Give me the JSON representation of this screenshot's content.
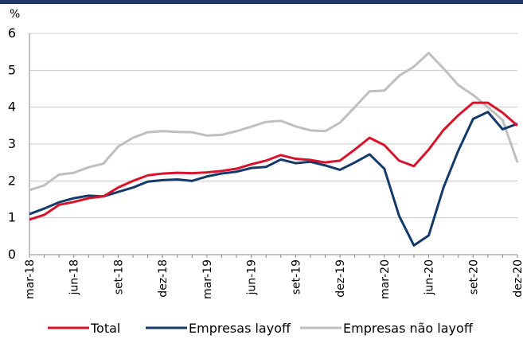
{
  "chart_data": {
    "type": "line",
    "y_label": "%",
    "categories": [
      "mar-18",
      null,
      null,
      "jun-18",
      null,
      null,
      "set-18",
      null,
      null,
      "dez-18",
      null,
      null,
      "mar-19",
      null,
      null,
      "jun-19",
      null,
      null,
      "set-19",
      null,
      null,
      "dez-19",
      null,
      null,
      "mar-20",
      null,
      null,
      "jun-20",
      null,
      null,
      "set-20",
      null,
      null,
      "dez-20"
    ],
    "series": [
      {
        "name": "Total",
        "color": "#d7142b",
        "values": [
          0.95,
          1.08,
          1.35,
          1.43,
          1.53,
          1.58,
          1.82,
          2.0,
          2.15,
          2.2,
          2.22,
          2.21,
          2.23,
          2.27,
          2.33,
          2.45,
          2.55,
          2.7,
          2.6,
          2.57,
          2.5,
          2.55,
          2.85,
          3.17,
          2.97,
          2.55,
          2.4,
          2.85,
          3.38,
          3.78,
          4.12,
          4.12,
          3.85,
          3.5
        ]
      },
      {
        "name": "Empresas layoff",
        "color": "#143a6b",
        "values": [
          1.1,
          1.25,
          1.42,
          1.53,
          1.6,
          1.58,
          1.7,
          1.82,
          1.98,
          2.02,
          2.04,
          2.0,
          2.12,
          2.2,
          2.25,
          2.35,
          2.38,
          2.58,
          2.48,
          2.52,
          2.42,
          2.3,
          2.5,
          2.72,
          2.33,
          1.05,
          0.25,
          0.52,
          1.82,
          2.82,
          3.68,
          3.87,
          3.4,
          3.55
        ]
      },
      {
        "name": "Empresas não layoff",
        "color": "#bfbfbf",
        "values": [
          1.75,
          1.88,
          2.17,
          2.22,
          2.37,
          2.47,
          2.93,
          3.17,
          3.32,
          3.35,
          3.33,
          3.32,
          3.23,
          3.25,
          3.35,
          3.47,
          3.6,
          3.63,
          3.48,
          3.37,
          3.35,
          3.58,
          4.0,
          4.43,
          4.45,
          4.85,
          5.1,
          5.47,
          5.05,
          4.6,
          4.33,
          4.0,
          3.65,
          2.5
        ]
      }
    ],
    "ylim": [
      0,
      6
    ],
    "yticks": [
      0,
      1,
      2,
      3,
      4,
      5,
      6
    ],
    "grid": true
  }
}
